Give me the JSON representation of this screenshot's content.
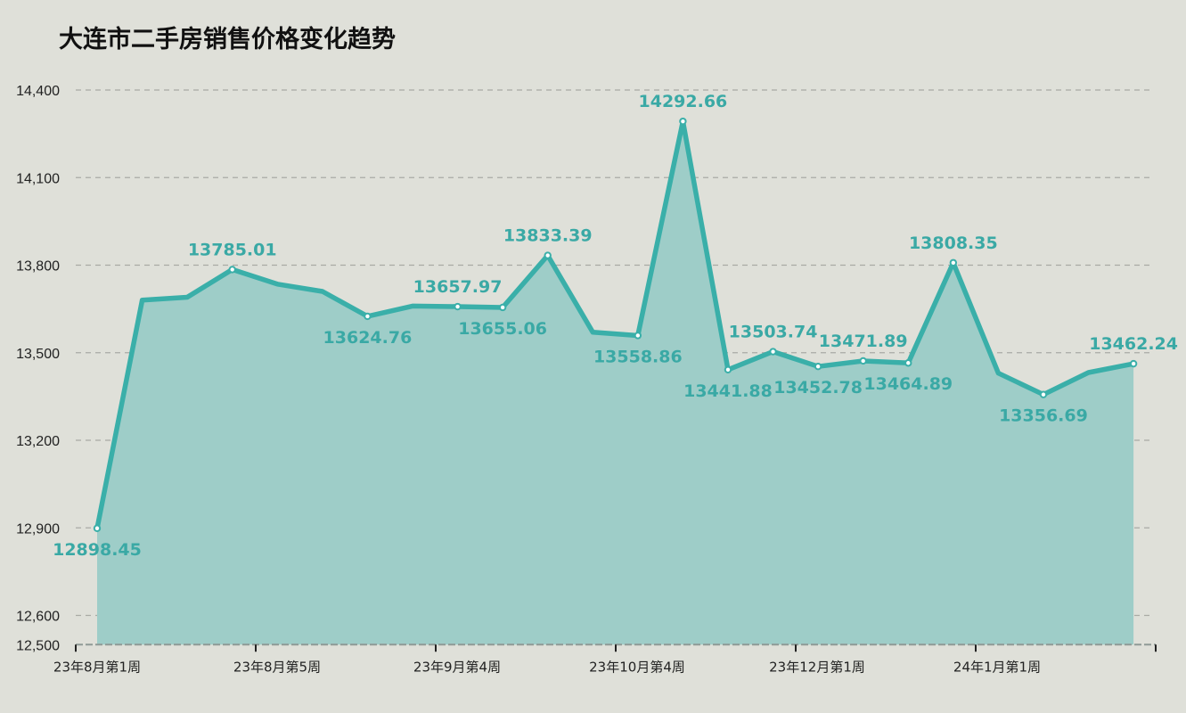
{
  "title": "大连市二手房销售价格变化趋势",
  "colors": {
    "background": "#dfe0d9",
    "line": "#3aafa9",
    "area": "#9ecdc8",
    "label": "#3aa9a5",
    "grid": "#a9aaa5"
  },
  "chart_data": {
    "type": "area",
    "title": "大连市二手房销售价格变化趋势",
    "xlabel": "",
    "ylabel": "",
    "ylim": [
      12500,
      14400
    ],
    "yticks": [
      12500,
      12600,
      12900,
      13200,
      13500,
      13800,
      14100,
      14400
    ],
    "ytick_labels": [
      "12,500",
      "12,600",
      "12,900",
      "13,200",
      "13,500",
      "13,800",
      "14,100",
      "14,400"
    ],
    "xtick_labels": [
      {
        "index": 0,
        "label": "23年8月第1周"
      },
      {
        "index": 4,
        "label": "23年8月第5周"
      },
      {
        "index": 8,
        "label": "23年9月第4周"
      },
      {
        "index": 12,
        "label": "23年10月第4周"
      },
      {
        "index": 16,
        "label": "23年12月第1周"
      },
      {
        "index": 20,
        "label": "24年1月第1周"
      }
    ],
    "grid": true,
    "legend": null,
    "values": [
      12898.45,
      13680,
      13690,
      13785.01,
      13735,
      13710,
      13624.76,
      13660,
      13657.97,
      13655.06,
      13833.39,
      13570,
      13558.86,
      14292.66,
      13441.88,
      13503.74,
      13452.78,
      13471.89,
      13464.89,
      13808.35,
      13430,
      13356.69,
      13432,
      13462.24
    ],
    "labeled_points": [
      {
        "index": 0,
        "text": "12898.45",
        "pos": "below"
      },
      {
        "index": 3,
        "text": "13785.01",
        "pos": "above"
      },
      {
        "index": 6,
        "text": "13624.76",
        "pos": "below"
      },
      {
        "index": 8,
        "text": "13657.97",
        "pos": "above"
      },
      {
        "index": 9,
        "text": "13655.06",
        "pos": "below"
      },
      {
        "index": 10,
        "text": "13833.39",
        "pos": "above"
      },
      {
        "index": 12,
        "text": "13558.86",
        "pos": "below"
      },
      {
        "index": 13,
        "text": "14292.66",
        "pos": "above"
      },
      {
        "index": 14,
        "text": "13441.88",
        "pos": "below"
      },
      {
        "index": 15,
        "text": "13503.74",
        "pos": "above"
      },
      {
        "index": 16,
        "text": "13452.78",
        "pos": "below"
      },
      {
        "index": 17,
        "text": "13471.89",
        "pos": "above"
      },
      {
        "index": 18,
        "text": "13464.89",
        "pos": "below"
      },
      {
        "index": 19,
        "text": "13808.35",
        "pos": "above"
      },
      {
        "index": 21,
        "text": "13356.69",
        "pos": "below"
      },
      {
        "index": 23,
        "text": "13462.24",
        "pos": "above"
      }
    ]
  }
}
